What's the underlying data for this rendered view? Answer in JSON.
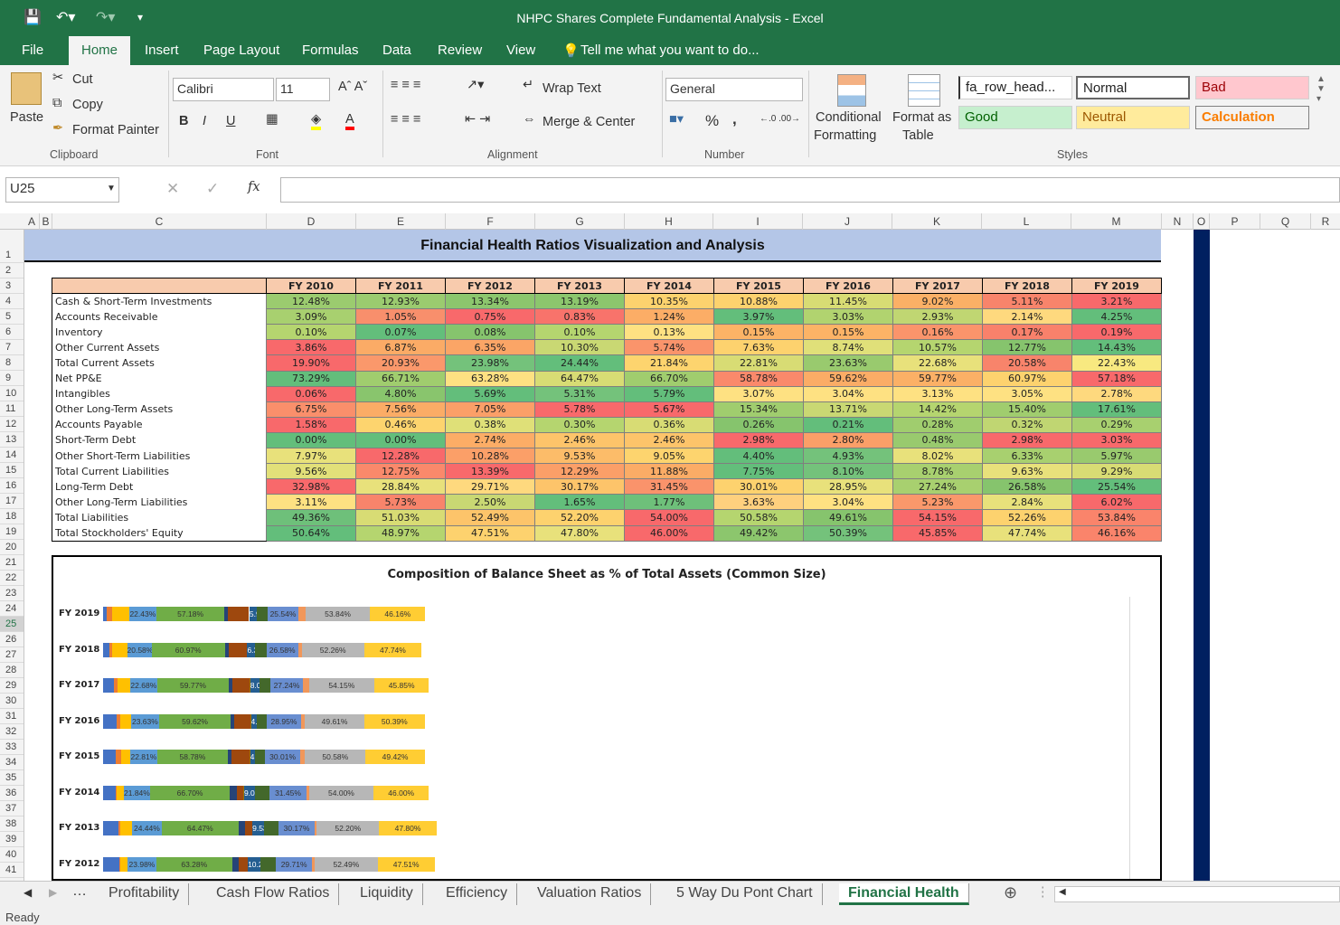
{
  "window": {
    "title": "NHPC Shares Complete Fundamental Analysis - Excel"
  },
  "ribbon": {
    "tabs": [
      "File",
      "Home",
      "Insert",
      "Page Layout",
      "Formulas",
      "Data",
      "Review",
      "View"
    ],
    "tell_me": "Tell me what you want to do...",
    "clipboard": {
      "paste": "Paste",
      "cut": "Cut",
      "copy": "Copy",
      "format_painter": "Format Painter",
      "label": "Clipboard"
    },
    "font": {
      "name": "Calibri",
      "size": "11",
      "label": "Font",
      "bold": "B",
      "italic": "I",
      "underline": "U"
    },
    "alignment": {
      "wrap": "Wrap Text",
      "merge": "Merge & Center",
      "label": "Alignment"
    },
    "number": {
      "format": "General",
      "percent": "%",
      "comma": ",",
      "label": "Number"
    },
    "styles": {
      "conditional": "Conditional",
      "formatting": "Formatting",
      "format_as": "Format as",
      "table": "Table",
      "label": "Styles",
      "cells": [
        "fa_row_head...",
        "Normal",
        "Bad",
        "Good",
        "Neutral",
        "Calculation"
      ]
    }
  },
  "formula_bar": {
    "name_box": "U25",
    "fx": "fx",
    "content": ""
  },
  "columns": [
    "A",
    "B",
    "C",
    "D",
    "E",
    "F",
    "G",
    "H",
    "I",
    "J",
    "K",
    "L",
    "M",
    "N",
    "O",
    "P",
    "Q",
    "R"
  ],
  "rows": [
    "1",
    "2",
    "3",
    "4",
    "5",
    "6",
    "7",
    "8",
    "9",
    "10",
    "11",
    "12",
    "13",
    "14",
    "15",
    "16",
    "17",
    "18",
    "19",
    "20",
    "21",
    "22",
    "23",
    "24",
    "25",
    "26",
    "27",
    "28",
    "29",
    "30",
    "31",
    "32",
    "33",
    "34",
    "35",
    "36",
    "37",
    "38",
    "39",
    "40",
    "41"
  ],
  "sheet": {
    "title": "Financial Health Ratios Visualization and Analysis",
    "years": [
      "FY 2010",
      "FY 2011",
      "FY 2012",
      "FY 2013",
      "FY 2014",
      "FY 2015",
      "FY 2016",
      "FY 2017",
      "FY 2018",
      "FY 2019"
    ],
    "rows": [
      {
        "label": "Cash & Short-Term Investments",
        "values": [
          "12.48%",
          "12.93%",
          "13.34%",
          "13.19%",
          "10.35%",
          "10.88%",
          "11.45%",
          "9.02%",
          "5.11%",
          "3.21%"
        ],
        "colors": [
          "#9bcb6f",
          "#9bcb6f",
          "#8cc66d",
          "#8cc66d",
          "#fdd26e",
          "#fdd26e",
          "#d8dc74",
          "#fbb066",
          "#f8846b",
          "#f8696b"
        ]
      },
      {
        "label": "Accounts Receivable",
        "values": [
          "3.09%",
          "1.05%",
          "0.75%",
          "0.83%",
          "1.24%",
          "3.97%",
          "3.03%",
          "2.93%",
          "2.14%",
          "4.25%"
        ],
        "colors": [
          "#a8d06f",
          "#f88f6c",
          "#f8696b",
          "#f8736b",
          "#fcad66",
          "#63be7b",
          "#b1d36f",
          "#c0d672",
          "#fed97e",
          "#63be7b"
        ]
      },
      {
        "label": "Inventory",
        "values": [
          "0.10%",
          "0.07%",
          "0.08%",
          "0.10%",
          "0.13%",
          "0.15%",
          "0.15%",
          "0.16%",
          "0.17%",
          "0.19%"
        ],
        "colors": [
          "#b5d56f",
          "#63be7b",
          "#86c46d",
          "#b5d56f",
          "#fee182",
          "#fcb366",
          "#fcb366",
          "#fa946b",
          "#f9816b",
          "#f8696b"
        ]
      },
      {
        "label": "Other Current Assets",
        "values": [
          "3.86%",
          "6.87%",
          "6.35%",
          "10.30%",
          "5.74%",
          "7.63%",
          "8.74%",
          "10.57%",
          "12.77%",
          "14.43%"
        ],
        "colors": [
          "#f8696b",
          "#fbab66",
          "#fba566",
          "#c9d873",
          "#fa946b",
          "#fdd26e",
          "#e0e079",
          "#b5d56f",
          "#86c46d",
          "#63be7b"
        ]
      },
      {
        "label": "Total Current Assets",
        "values": [
          "19.90%",
          "20.93%",
          "23.98%",
          "24.44%",
          "21.84%",
          "22.81%",
          "23.63%",
          "22.68%",
          "20.58%",
          "22.43%"
        ],
        "colors": [
          "#f8696b",
          "#fa986b",
          "#74c27b",
          "#63be7b",
          "#fdd46e",
          "#d8dc74",
          "#99ca6e",
          "#e8e17b",
          "#f8846b",
          "#f8e980"
        ]
      },
      {
        "label": "Net PP&E",
        "values": [
          "73.29%",
          "66.71%",
          "63.28%",
          "64.47%",
          "66.70%",
          "58.78%",
          "59.62%",
          "59.77%",
          "60.97%",
          "57.18%"
        ],
        "colors": [
          "#63be7b",
          "#a0cd6e",
          "#fee182",
          "#d8dc74",
          "#a0cd6e",
          "#fa896b",
          "#fbac66",
          "#fbb066",
          "#fdd26e",
          "#f8696b"
        ]
      },
      {
        "label": "Intangibles",
        "values": [
          "0.06%",
          "4.80%",
          "5.69%",
          "5.31%",
          "5.79%",
          "3.07%",
          "3.04%",
          "3.13%",
          "3.05%",
          "2.78%"
        ],
        "colors": [
          "#f8696b",
          "#89c56d",
          "#63be7b",
          "#74c27b",
          "#63be7b",
          "#fee182",
          "#fee182",
          "#fee182",
          "#fee182",
          "#fed97e"
        ]
      },
      {
        "label": "Other Long-Term Assets",
        "values": [
          "6.75%",
          "7.56%",
          "7.05%",
          "5.78%",
          "5.67%",
          "15.34%",
          "13.71%",
          "14.42%",
          "15.40%",
          "17.61%"
        ],
        "colors": [
          "#fa8f6b",
          "#fbac66",
          "#fb9f68",
          "#f8696b",
          "#f8696b",
          "#a0cd6e",
          "#c9d873",
          "#b5d56f",
          "#a0cd6e",
          "#63be7b"
        ]
      },
      {
        "label": "Accounts Payable",
        "values": [
          "1.58%",
          "0.46%",
          "0.38%",
          "0.30%",
          "0.36%",
          "0.26%",
          "0.21%",
          "0.28%",
          "0.32%",
          "0.29%"
        ],
        "colors": [
          "#f8696b",
          "#fdd46e",
          "#dfe078",
          "#b5d56f",
          "#d8dc74",
          "#86c46d",
          "#63be7b",
          "#a0cd6e",
          "#c0d672",
          "#a8d06f"
        ]
      },
      {
        "label": "Short-Term Debt",
        "values": [
          "0.00%",
          "0.00%",
          "2.74%",
          "2.46%",
          "2.46%",
          "2.98%",
          "2.80%",
          "0.48%",
          "2.98%",
          "3.03%"
        ],
        "colors": [
          "#63be7b",
          "#63be7b",
          "#fcad66",
          "#fdc46a",
          "#fdc46a",
          "#f8696b",
          "#fb9f68",
          "#99ca6e",
          "#f8696b",
          "#f8696b"
        ]
      },
      {
        "label": "Other Short-Term Liabilities",
        "values": [
          "7.97%",
          "12.28%",
          "10.28%",
          "9.53%",
          "9.05%",
          "4.40%",
          "4.93%",
          "8.02%",
          "6.33%",
          "5.97%"
        ],
        "colors": [
          "#e8e17b",
          "#f8696b",
          "#fb9f68",
          "#fcbc69",
          "#fdd46e",
          "#63be7b",
          "#74c27b",
          "#e8e17b",
          "#a8d06f",
          "#99ca6e"
        ]
      },
      {
        "label": "Total Current Liabilities",
        "values": [
          "9.56%",
          "12.75%",
          "13.39%",
          "12.29%",
          "11.88%",
          "7.75%",
          "8.10%",
          "8.78%",
          "9.63%",
          "9.29%"
        ],
        "colors": [
          "#e2e079",
          "#fa896b",
          "#f8696b",
          "#fb9f68",
          "#fbac66",
          "#63be7b",
          "#74c27b",
          "#a8d06f",
          "#e8e17b",
          "#d8dc74"
        ]
      },
      {
        "label": "Long-Term Debt",
        "values": [
          "32.98%",
          "28.84%",
          "29.71%",
          "30.17%",
          "31.45%",
          "30.01%",
          "28.95%",
          "27.24%",
          "26.58%",
          "25.54%"
        ],
        "colors": [
          "#f8696b",
          "#e8e17b",
          "#fed97e",
          "#fdc46a",
          "#fa936b",
          "#fdd26e",
          "#e8e17b",
          "#a8d06f",
          "#86c46d",
          "#63be7b"
        ]
      },
      {
        "label": "Other Long-Term Liabilities",
        "values": [
          "3.11%",
          "5.73%",
          "2.50%",
          "1.65%",
          "1.77%",
          "3.63%",
          "3.04%",
          "5.23%",
          "2.84%",
          "6.02%"
        ],
        "colors": [
          "#fee182",
          "#f8846b",
          "#c9d873",
          "#63be7b",
          "#6ec07a",
          "#fed07e",
          "#fee182",
          "#fa986b",
          "#e8e17b",
          "#f8696b"
        ]
      },
      {
        "label": "Total Liabilities",
        "values": [
          "49.36%",
          "51.03%",
          "52.49%",
          "52.20%",
          "54.00%",
          "50.58%",
          "49.61%",
          "54.15%",
          "52.26%",
          "53.84%"
        ],
        "colors": [
          "#6ec07a",
          "#d8dc74",
          "#fdc46a",
          "#fdd26e",
          "#f8696b",
          "#b5d56f",
          "#86c46d",
          "#f8696b",
          "#fdd26e",
          "#fa846b"
        ]
      },
      {
        "label": "Total Stockholders' Equity",
        "values": [
          "50.64%",
          "48.97%",
          "47.51%",
          "47.80%",
          "46.00%",
          "49.42%",
          "50.39%",
          "45.85%",
          "47.74%",
          "46.16%"
        ],
        "colors": [
          "#63be7b",
          "#b5d56f",
          "#fdd26e",
          "#e8e17b",
          "#f8696b",
          "#8cc66d",
          "#74c27b",
          "#f8696b",
          "#e8e17b",
          "#fa846b"
        ]
      }
    ]
  },
  "chart_data": {
    "type": "bar",
    "title": "Composition of Balance Sheet as % of Total Assets (Common Size)",
    "orientation": "horizontal-stacked",
    "categories": [
      "FY 2019",
      "FY 2018",
      "FY 2017",
      "FY 2016",
      "FY 2015",
      "FY 2014",
      "FY 2013",
      "FY 2012"
    ],
    "series_colors": [
      "#4472c4",
      "#ed7d31",
      "#ffc000",
      "#5b9bd5",
      "#70ad47",
      "#264478",
      "#9e480e",
      "#997300",
      "#255e91",
      "#43682b",
      "#698ed0",
      "#f1975a",
      "#b7b7b7",
      "#ffcd33"
    ],
    "series": [
      {
        "values": [
          3.21,
          5.11,
          9.02,
          11.45,
          10.88,
          10.35,
          13.19,
          13.34
        ]
      },
      {
        "values": [
          4.25,
          2.14,
          2.93,
          3.03,
          3.97,
          1.24,
          0.83,
          0.75
        ]
      },
      {
        "values": [
          14.43,
          12.77,
          10.57,
          8.74,
          7.63,
          5.74,
          10.3,
          6.35
        ]
      },
      {
        "values": [
          22.43,
          20.58,
          22.68,
          23.63,
          22.81,
          21.84,
          24.44,
          23.98
        ]
      },
      {
        "values": [
          57.18,
          60.97,
          59.77,
          59.62,
          58.78,
          66.7,
          64.47,
          63.28
        ]
      },
      {
        "values": [
          2.78,
          3.05,
          3.13,
          3.04,
          3.07,
          5.79,
          5.31,
          5.69
        ]
      },
      {
        "values": [
          17.61,
          15.4,
          14.42,
          13.71,
          15.34,
          5.67,
          5.78,
          7.05
        ]
      },
      {
        "values": [
          0.29,
          0.32,
          0.28,
          0.21,
          0.26,
          0.36,
          0.3,
          0.38
        ]
      },
      {
        "values": [
          5.97,
          6.33,
          8.02,
          4.93,
          4.4,
          9.05,
          9.53,
          10.28
        ]
      },
      {
        "values": [
          9.29,
          9.63,
          8.78,
          8.1,
          7.75,
          11.88,
          12.29,
          13.39
        ]
      },
      {
        "values": [
          25.54,
          26.58,
          27.24,
          28.95,
          30.01,
          31.45,
          30.17,
          29.71
        ]
      },
      {
        "values": [
          6.02,
          2.84,
          5.23,
          3.04,
          3.63,
          1.77,
          1.65,
          2.5
        ]
      },
      {
        "values": [
          53.84,
          52.26,
          54.15,
          49.61,
          50.58,
          54.0,
          52.2,
          52.49
        ]
      },
      {
        "values": [
          46.16,
          47.74,
          45.85,
          50.39,
          49.42,
          46.0,
          47.8,
          47.51
        ]
      }
    ],
    "labeled_series": [
      3,
      4,
      8,
      10,
      12,
      13
    ]
  },
  "sheet_tabs": [
    "Profitability",
    "Cash Flow Ratios",
    "Liquidity",
    "Efficiency",
    "Valuation Ratios",
    "5 Way Du Pont Chart",
    "Financial Health"
  ],
  "status": "Ready"
}
